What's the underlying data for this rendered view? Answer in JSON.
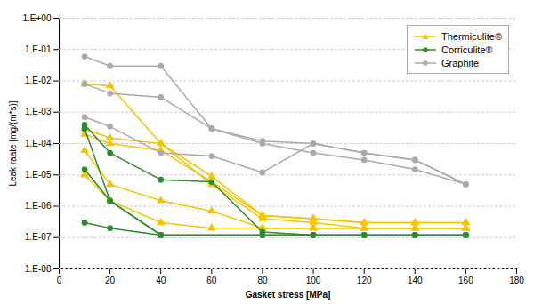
{
  "chart_data": {
    "type": "line",
    "xlabel": "Gasket stress [MPa]",
    "ylabel": "Leak raate [mg/(m*s)]",
    "log": "y",
    "xlim": [
      0,
      180
    ],
    "ylim": [
      1e-08,
      1
    ],
    "xticks": [
      0,
      20,
      40,
      60,
      80,
      100,
      120,
      140,
      160,
      180
    ],
    "yticks": [
      {
        "value": 1e-08,
        "label": "1.E-08"
      },
      {
        "value": 1e-07,
        "label": "1.E-07"
      },
      {
        "value": 1e-06,
        "label": "1.E-06"
      },
      {
        "value": 1e-05,
        "label": "1.E-05"
      },
      {
        "value": 0.0001,
        "label": "1.E-04"
      },
      {
        "value": 0.001,
        "label": "1.E-03"
      },
      {
        "value": 0.01,
        "label": "1.E-02"
      },
      {
        "value": 0.1,
        "label": "1.E-01"
      },
      {
        "value": 1,
        "label": "1.E+00"
      }
    ],
    "grid": "y",
    "legend": "upper right",
    "series": [
      {
        "name": "Thermiculite®",
        "color": "#f5c400",
        "marker": "triangle",
        "x": [
          [
            10,
            20,
            40,
            60,
            80,
            100,
            120,
            140,
            160
          ],
          [
            10,
            20,
            40,
            60,
            80,
            100,
            120,
            140,
            160
          ],
          [
            10,
            20,
            40,
            60,
            80,
            100,
            120,
            140,
            160
          ],
          [
            10,
            20,
            40,
            60,
            80,
            100,
            120,
            140,
            160
          ],
          [
            10,
            20,
            40,
            60,
            80,
            100,
            120,
            140,
            160
          ]
        ],
        "values": [
          [
            0.008,
            0.007,
            0.0001,
            5e-06,
            4e-07,
            3e-07,
            2e-07,
            2e-07,
            2e-07
          ],
          [
            0.0003,
            0.00015,
            0.0001,
            9e-06,
            5e-07,
            4e-07,
            3e-07,
            3e-07,
            3e-07
          ],
          [
            0.0002,
            0.0001,
            6e-05,
            6e-06,
            5e-07,
            4e-07,
            3e-07,
            3e-07,
            3e-07
          ],
          [
            6e-05,
            5e-06,
            1.5e-06,
            7e-07,
            2e-07,
            2e-07,
            2e-07,
            2e-07,
            2e-07
          ],
          [
            1e-05,
            1.5e-06,
            3e-07,
            2e-07,
            2e-07,
            2e-07,
            2e-07,
            2e-07,
            2e-07
          ]
        ]
      },
      {
        "name": "Corriculite®",
        "color": "#2a8c2a",
        "marker": "circle",
        "x": [
          [
            10,
            20,
            40,
            60,
            80,
            100,
            120,
            140,
            160
          ],
          [
            10,
            20,
            40,
            80,
            100,
            120,
            140,
            160
          ],
          [
            10,
            20,
            40,
            80,
            100,
            120,
            140,
            160
          ],
          [
            10,
            20,
            40,
            80,
            100,
            120,
            140,
            160
          ]
        ],
        "values": [
          [
            0.0004,
            5e-05,
            7e-06,
            6e-06,
            1.5e-07,
            1.2e-07,
            1.2e-07,
            1.2e-07,
            1.2e-07
          ],
          [
            3e-07,
            2e-07,
            1.2e-07,
            1.2e-07,
            1.2e-07,
            1.2e-07,
            1.2e-07,
            1.2e-07
          ],
          [
            0.0003,
            1.5e-06,
            1.2e-07,
            1.2e-07,
            1.2e-07,
            1.2e-07,
            1.2e-07,
            1.2e-07
          ],
          [
            1.5e-05,
            1.5e-06,
            1.2e-07,
            1.2e-07,
            1.2e-07,
            1.2e-07,
            1.2e-07,
            1.2e-07
          ]
        ]
      },
      {
        "name": "Graphite",
        "color": "#aaaaaa",
        "marker": "circle",
        "x": [
          [
            10,
            20,
            40,
            60,
            80,
            100,
            120,
            140,
            160
          ],
          [
            10,
            20,
            40,
            60,
            80,
            100,
            120,
            140,
            160
          ],
          [
            10,
            20,
            40,
            60,
            80,
            100,
            120,
            140,
            160
          ]
        ],
        "values": [
          [
            0.06,
            0.03,
            0.03,
            0.0003,
            0.0001,
            5e-05,
            3e-05,
            1.5e-05,
            5e-06
          ],
          [
            0.008,
            0.004,
            0.003,
            0.0003,
            0.00012,
            0.0001,
            5e-05,
            3e-05,
            5e-06
          ],
          [
            0.0007,
            0.00035,
            5e-05,
            4e-05,
            1.2e-05,
            0.0001,
            5e-05,
            3e-05,
            5e-06
          ]
        ]
      }
    ]
  }
}
